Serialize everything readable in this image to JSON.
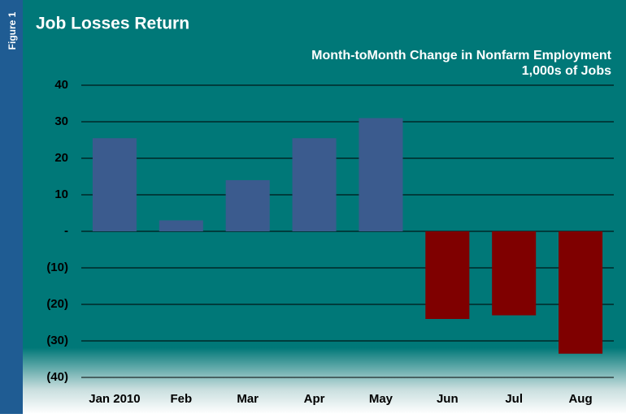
{
  "figure_label": "Figure 1",
  "chart_data": {
    "type": "bar",
    "title": "Job Losses Return",
    "subtitle": [
      "Month-toMonth Change in Nonfarm Employment",
      "1,000s of Jobs"
    ],
    "categories": [
      "Jan 2010",
      "Feb",
      "Mar",
      "Apr",
      "May",
      "Jun",
      "Jul",
      "Aug"
    ],
    "values": [
      25.5,
      3,
      14,
      25.5,
      31,
      -24,
      -23,
      -33.5
    ],
    "colors": [
      "#3b5b8e",
      "#3b5b8e",
      "#3b5b8e",
      "#3b5b8e",
      "#3b5b8e",
      "#7f0000",
      "#7f0000",
      "#7f0000"
    ],
    "ylim": [
      -40,
      40
    ],
    "yticks": [
      40,
      30,
      20,
      10,
      {
        "value": 0,
        "label": "-"
      },
      {
        "value": -10,
        "label": "(10)"
      },
      {
        "value": -20,
        "label": "(20)"
      },
      {
        "value": -30,
        "label": "(30)"
      },
      {
        "value": -40,
        "label": "(40)"
      }
    ],
    "grid": true
  }
}
